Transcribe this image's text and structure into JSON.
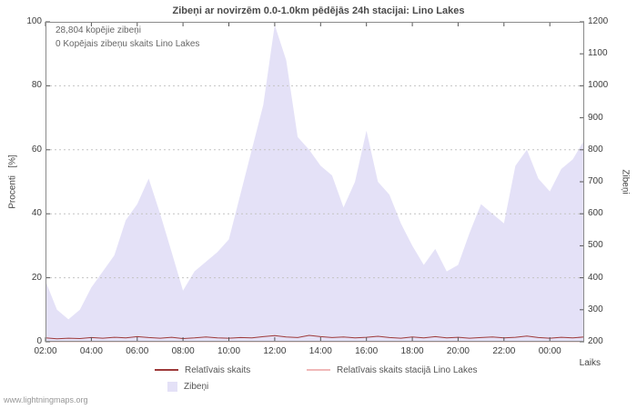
{
  "watermark": "www.lightningmaps.org",
  "chart_data": {
    "type": "area",
    "title": "Zibeņi ar novirzēm 0.0-1.0km pēdējās 24h stacijai: Lino Lakes",
    "xlabel": "Laiks",
    "ylabel_left": "Procenti   [%]",
    "ylabel_right": "Zibeņi",
    "annotations": [
      "28,804 kopējie zibeņi",
      "0 Kopējais zibeņu skaits Lino Lakes"
    ],
    "grid": true,
    "legend_position": "bottom",
    "ylim_left": [
      0,
      100
    ],
    "ylim_right": [
      200,
      1200
    ],
    "y_ticks_left": [
      0,
      20,
      40,
      60,
      80,
      100
    ],
    "y_ticks_right": [
      200,
      300,
      400,
      500,
      600,
      700,
      800,
      900,
      1000,
      1100,
      1200
    ],
    "x_ticks": [
      "02:00",
      "04:00",
      "06:00",
      "08:00",
      "10:00",
      "12:00",
      "14:00",
      "16:00",
      "18:00",
      "20:00",
      "22:00",
      "00:00"
    ],
    "x_tick_step_points": 4,
    "x_step_minutes": 30,
    "x": [
      "02:00",
      "02:30",
      "03:00",
      "03:30",
      "04:00",
      "04:30",
      "05:00",
      "05:30",
      "06:00",
      "06:30",
      "07:00",
      "07:30",
      "08:00",
      "08:30",
      "09:00",
      "09:30",
      "10:00",
      "10:30",
      "11:00",
      "11:30",
      "12:00",
      "12:30",
      "13:00",
      "13:30",
      "14:00",
      "14:30",
      "15:00",
      "15:30",
      "16:00",
      "16:30",
      "17:00",
      "17:30",
      "18:00",
      "18:30",
      "19:00",
      "19:30",
      "20:00",
      "20:30",
      "21:00",
      "21:30",
      "22:00",
      "22:30",
      "23:00",
      "23:30",
      "00:00",
      "00:30",
      "01:00",
      "01:30"
    ],
    "series": [
      {
        "name": "Zibeņi",
        "type": "area",
        "axis": "right",
        "color": "#e4e1f7",
        "values": [
          390,
          300,
          270,
          300,
          370,
          420,
          470,
          580,
          630,
          710,
          600,
          480,
          360,
          420,
          450,
          480,
          520,
          660,
          800,
          940,
          1190,
          1080,
          840,
          800,
          750,
          720,
          620,
          700,
          860,
          700,
          660,
          570,
          500,
          440,
          490,
          420,
          440,
          540,
          630,
          600,
          570,
          750,
          800,
          710,
          670,
          740,
          770,
          830
        ]
      },
      {
        "name": "Relatīvais skaits",
        "type": "line",
        "axis": "left",
        "color": "#9e3a3a",
        "values": [
          1.2,
          0.9,
          1.1,
          1.0,
          1.3,
          1.1,
          1.4,
          1.2,
          1.6,
          1.3,
          1.1,
          1.4,
          1.0,
          1.2,
          1.5,
          1.2,
          1.1,
          1.3,
          1.2,
          1.6,
          1.9,
          1.5,
          1.3,
          2.0,
          1.6,
          1.3,
          1.5,
          1.2,
          1.4,
          1.7,
          1.3,
          1.1,
          1.5,
          1.2,
          1.6,
          1.2,
          1.4,
          1.1,
          1.3,
          1.5,
          1.2,
          1.4,
          1.8,
          1.3,
          1.1,
          1.4,
          1.2,
          1.5
        ]
      },
      {
        "name": "Relatīvais skaits stacijā Lino Lakes",
        "type": "line",
        "axis": "left",
        "color": "#f0b8b8",
        "values": [
          0,
          0,
          0,
          0,
          0,
          0,
          0,
          0,
          0,
          0,
          0,
          0,
          0,
          0,
          0,
          0,
          0,
          0,
          0,
          0,
          0,
          0,
          0,
          0,
          0,
          0,
          0,
          0,
          0,
          0,
          0,
          0,
          0,
          0,
          0,
          0,
          0,
          0,
          0,
          0,
          0,
          0,
          0,
          0,
          0,
          0,
          0,
          0
        ]
      }
    ]
  }
}
